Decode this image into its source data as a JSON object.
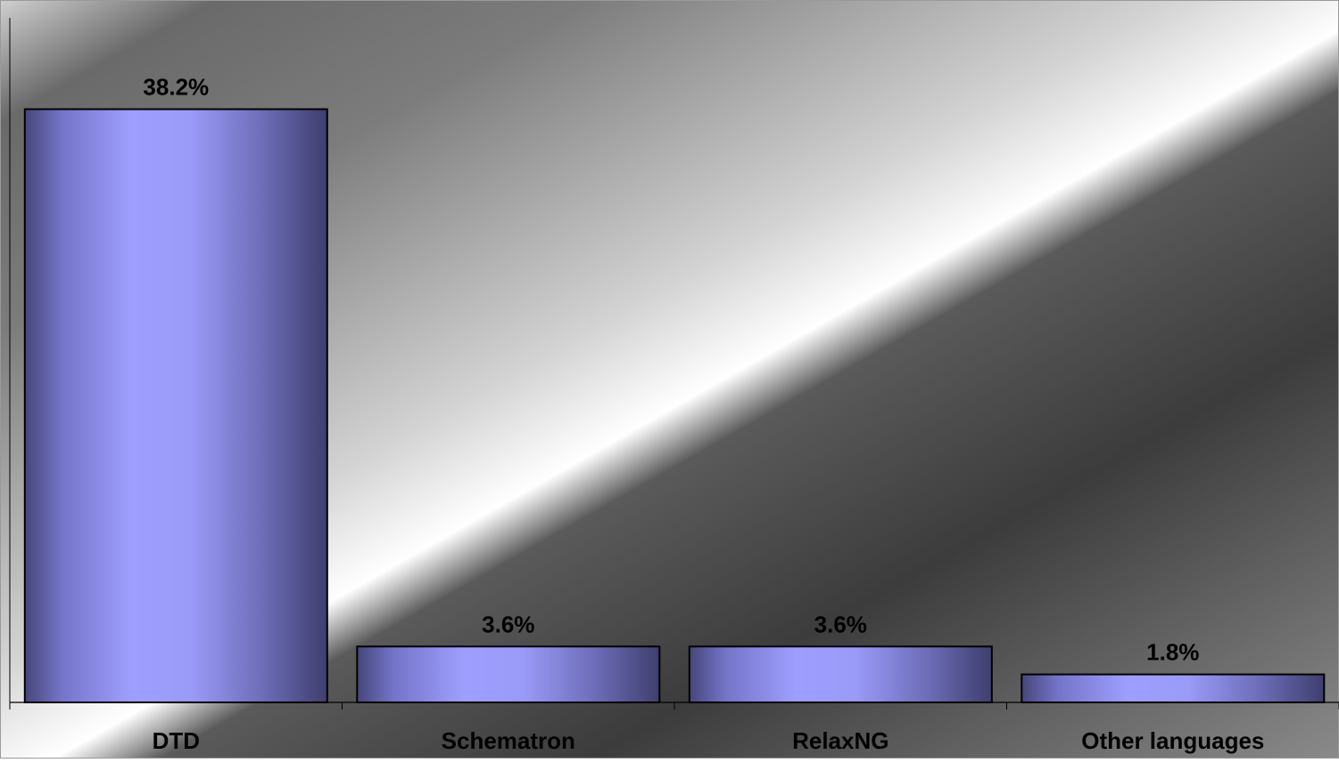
{
  "chart_data": {
    "type": "bar",
    "categories": [
      "DTD",
      "Schematron",
      "RelaxNG",
      "Other languages"
    ],
    "values": [
      38.2,
      3.6,
      3.6,
      1.8
    ],
    "data_labels": [
      "38.2%",
      "3.6%",
      "3.6%",
      "1.8%"
    ],
    "title": "",
    "xlabel": "",
    "ylabel": "",
    "ylim": [
      0,
      40
    ],
    "grid": false,
    "legend": "none",
    "colors": {
      "bar_light": "#9e9eff",
      "bar_dark": "#46467a",
      "bar_outline": "#000000",
      "axis": "#000000",
      "background_dark": "#3a3a3a",
      "background_light": "#ffffff"
    }
  }
}
